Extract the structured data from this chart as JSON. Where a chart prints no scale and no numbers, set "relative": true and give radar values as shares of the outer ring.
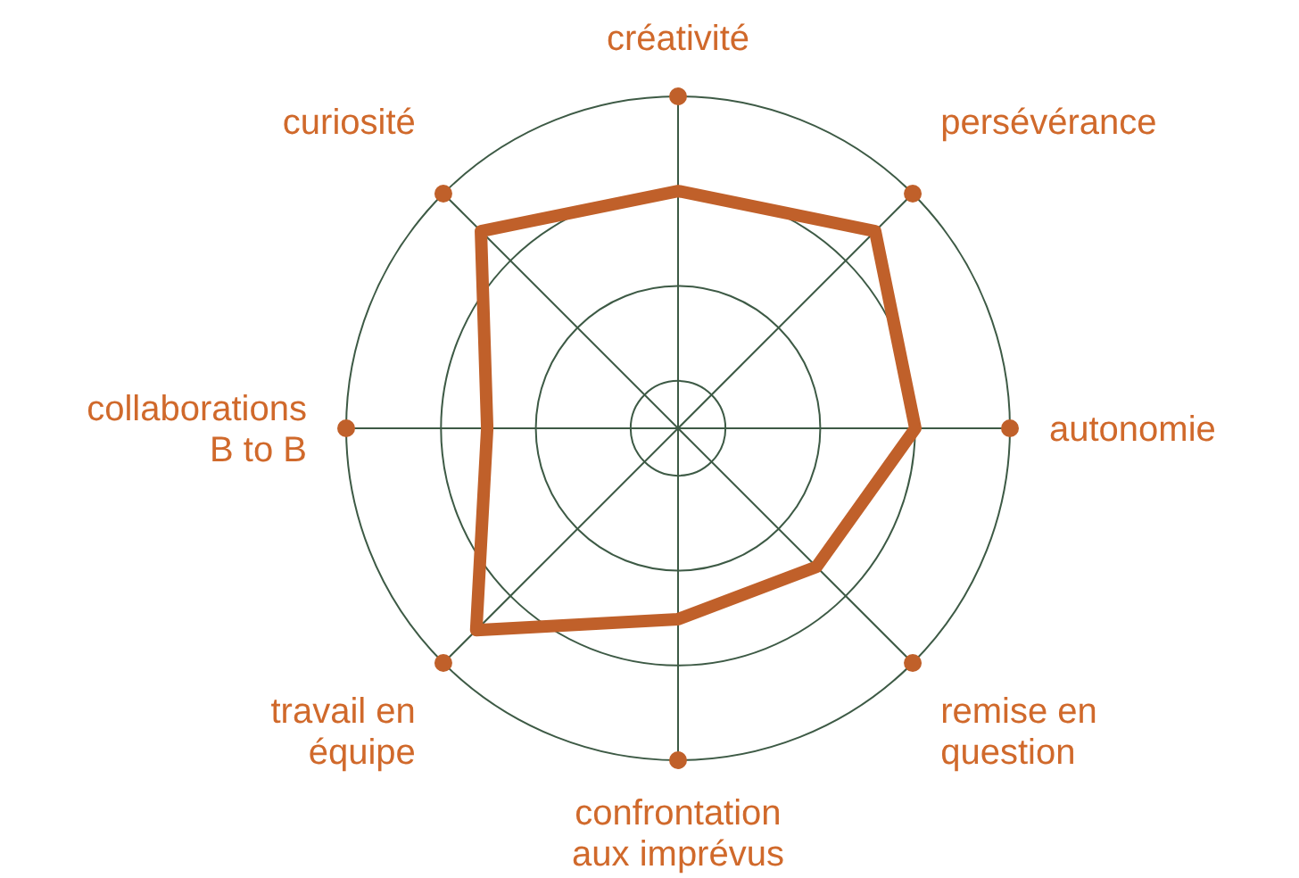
{
  "chart_data": {
    "type": "radar",
    "relative": true,
    "categories": [
      "créativité",
      "persévérance",
      "autonomie",
      "remise en question",
      "confrontation aux imprévus",
      "travail en équipe",
      "collaborations B to B",
      "curiosité"
    ],
    "series": [
      {
        "color": "#c0602a",
        "values": [
          0.715,
          0.84,
          0.715,
          0.59,
          0.575,
          0.86,
          0.575,
          0.84
        ]
      }
    ],
    "grid": true
  }
}
